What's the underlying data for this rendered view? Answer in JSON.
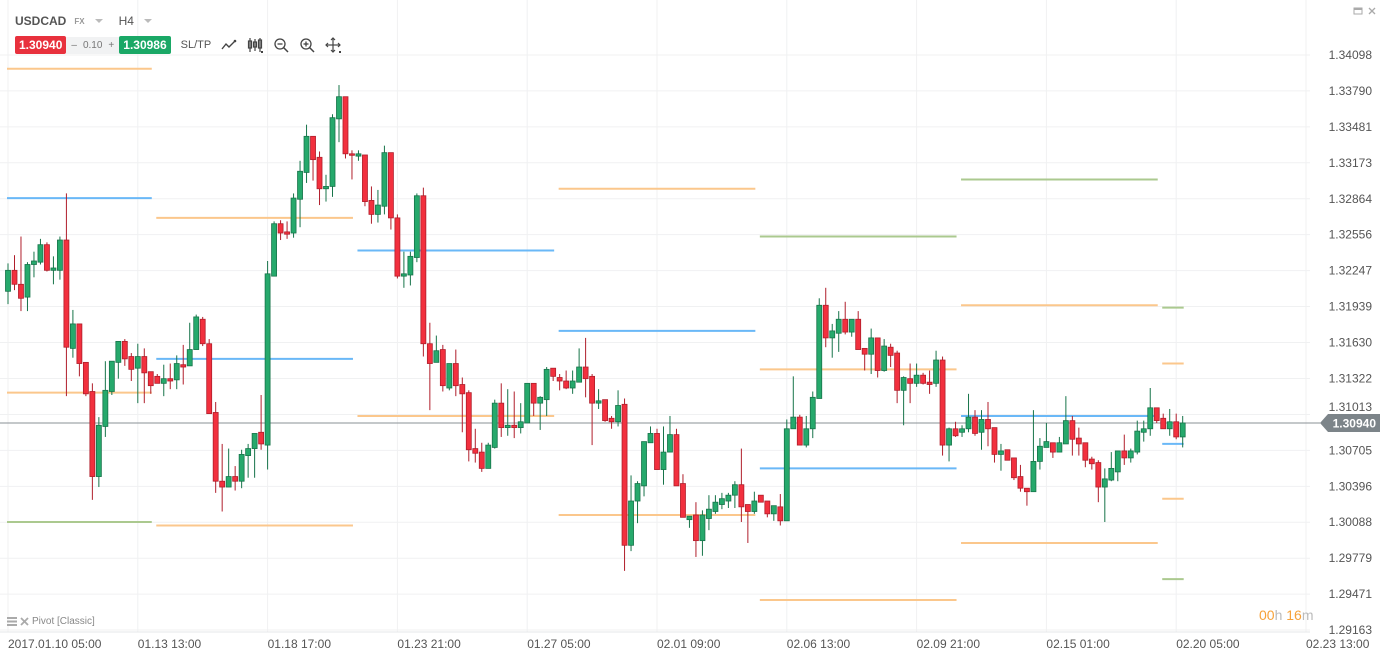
{
  "header": {
    "symbol": "USDCAD",
    "market": "FX",
    "timeframe": "H4",
    "bid": "1.30940",
    "spread_minus": "–",
    "spread": "0.10",
    "spread_plus": "+",
    "ask": "1.30986",
    "sltp_label": "SL/TP",
    "tools": [
      "line-chart-icon",
      "candlestick-type-icon",
      "zoom-out-icon",
      "zoom-in-icon",
      "crosshair-move-icon"
    ],
    "window_controls": [
      "minimize-icon",
      "close-icon"
    ]
  },
  "indicator": {
    "label": "Pivot [Classic]"
  },
  "countdown": {
    "hours": "00",
    "h": "h",
    "minutes": "16",
    "m": "m"
  },
  "colors": {
    "up": "#26a96c",
    "down": "#f2303e",
    "pivot_orange": "#fbc78c",
    "pivot_blue": "#6ab8f7",
    "pivot_green": "#abc98f",
    "price_tag": "#7c8489"
  },
  "chart_data": {
    "type": "candlestick",
    "symbol": "USDCAD",
    "current_price": "1.30940",
    "ylim": [
      1.29163,
      1.34098
    ],
    "y_ticks": [
      "1.34098",
      "1.33790",
      "1.33481",
      "1.33173",
      "1.32864",
      "1.32556",
      "1.32247",
      "1.31939",
      "1.31630",
      "1.31322",
      "1.31013",
      "1.30705",
      "1.30396",
      "1.30088",
      "1.29779",
      "1.29471",
      "1.29163"
    ],
    "x_ticks": [
      "2017.01.10 05:00",
      "01.13 13:00",
      "01.18 17:00",
      "01.23 21:00",
      "01.27 05:00",
      "02.01 09:00",
      "02.06 13:00",
      "02.09 21:00",
      "02.15 01:00",
      "02.20 05:00",
      "02.23 13:00"
    ],
    "x_tick_every_n_bars": 20,
    "grid": true,
    "ohlc_fields": [
      "open",
      "high",
      "low",
      "close"
    ],
    "candles": [
      [
        1.3207,
        1.3231,
        1.3196,
        1.3225
      ],
      [
        1.3225,
        1.3238,
        1.3208,
        1.3213
      ],
      [
        1.3213,
        1.3254,
        1.319,
        1.3201
      ],
      [
        1.3202,
        1.3232,
        1.319,
        1.323
      ],
      [
        1.323,
        1.3241,
        1.3219,
        1.3233
      ],
      [
        1.3232,
        1.3252,
        1.323,
        1.3247
      ],
      [
        1.3247,
        1.3249,
        1.3224,
        1.3225
      ],
      [
        1.3225,
        1.3237,
        1.3213,
        1.3227
      ],
      [
        1.3225,
        1.3254,
        1.3217,
        1.3251
      ],
      [
        1.3251,
        1.3291,
        1.3117,
        1.3159
      ],
      [
        1.3158,
        1.3191,
        1.315,
        1.3179
      ],
      [
        1.3179,
        1.3179,
        1.3134,
        1.3145
      ],
      [
        1.3146,
        1.3146,
        1.3117,
        1.3119
      ],
      [
        1.3121,
        1.3128,
        1.3028,
        1.3048
      ],
      [
        1.3048,
        1.3099,
        1.3039,
        1.3092
      ],
      [
        1.3091,
        1.3147,
        1.3082,
        1.3122
      ],
      [
        1.3121,
        1.3147,
        1.3118,
        1.3147
      ],
      [
        1.3146,
        1.3164,
        1.3132,
        1.3164
      ],
      [
        1.3164,
        1.3166,
        1.3143,
        1.3149
      ],
      [
        1.3151,
        1.3154,
        1.313,
        1.314
      ],
      [
        1.3141,
        1.3162,
        1.3111,
        1.3151
      ],
      [
        1.3151,
        1.3158,
        1.3111,
        1.3137
      ],
      [
        1.3138,
        1.3138,
        1.3119,
        1.3126
      ],
      [
        1.3134,
        1.3136,
        1.3128,
        1.3128
      ],
      [
        1.3128,
        1.3144,
        1.3117,
        1.3132
      ],
      [
        1.3132,
        1.3145,
        1.3123,
        1.313
      ],
      [
        1.3131,
        1.3152,
        1.3123,
        1.3145
      ],
      [
        1.3144,
        1.3161,
        1.3127,
        1.3142
      ],
      [
        1.3143,
        1.318,
        1.3143,
        1.3157
      ],
      [
        1.3157,
        1.3187,
        1.3157,
        1.3185
      ],
      [
        1.3183,
        1.3185,
        1.316,
        1.3162
      ],
      [
        1.3162,
        1.3166,
        1.3102,
        1.3102
      ],
      [
        1.3103,
        1.3112,
        1.3034,
        1.3044
      ],
      [
        1.3044,
        1.3076,
        1.3018,
        1.3039
      ],
      [
        1.3039,
        1.3072,
        1.3039,
        1.3048
      ],
      [
        1.3048,
        1.3057,
        1.3036,
        1.3044
      ],
      [
        1.3044,
        1.3071,
        1.3038,
        1.3067
      ],
      [
        1.3066,
        1.3076,
        1.3047,
        1.3072
      ],
      [
        1.3072,
        1.3085,
        1.3047,
        1.3085
      ],
      [
        1.3086,
        1.3118,
        1.3071,
        1.3076
      ],
      [
        1.3075,
        1.3233,
        1.3054,
        1.3222
      ],
      [
        1.322,
        1.3267,
        1.322,
        1.3265
      ],
      [
        1.3265,
        1.3268,
        1.3251,
        1.3257
      ],
      [
        1.3258,
        1.3267,
        1.3252,
        1.3256
      ],
      [
        1.3257,
        1.3291,
        1.3253,
        1.3287
      ],
      [
        1.3286,
        1.3319,
        1.3262,
        1.331
      ],
      [
        1.3309,
        1.335,
        1.33,
        1.334
      ],
      [
        1.334,
        1.334,
        1.3302,
        1.332
      ],
      [
        1.3322,
        1.3327,
        1.3281,
        1.3295
      ],
      [
        1.3295,
        1.3307,
        1.3284,
        1.3297
      ],
      [
        1.3297,
        1.3359,
        1.3288,
        1.3356
      ],
      [
        1.3355,
        1.3384,
        1.3335,
        1.3374
      ],
      [
        1.3374,
        1.3374,
        1.3321,
        1.3325
      ],
      [
        1.3325,
        1.3328,
        1.3303,
        1.3324
      ],
      [
        1.3323,
        1.3328,
        1.3319,
        1.3325
      ],
      [
        1.3324,
        1.3324,
        1.328,
        1.3284
      ],
      [
        1.3285,
        1.3297,
        1.3265,
        1.3273
      ],
      [
        1.3273,
        1.3294,
        1.3266,
        1.3281
      ],
      [
        1.328,
        1.3332,
        1.3273,
        1.3326
      ],
      [
        1.3326,
        1.3326,
        1.326,
        1.327
      ],
      [
        1.327,
        1.3273,
        1.3218,
        1.322
      ],
      [
        1.322,
        1.3241,
        1.321,
        1.3222
      ],
      [
        1.3221,
        1.3241,
        1.3212,
        1.3237
      ],
      [
        1.3236,
        1.3291,
        1.3232,
        1.3289
      ],
      [
        1.3289,
        1.3296,
        1.3151,
        1.3162
      ],
      [
        1.3162,
        1.318,
        1.3105,
        1.3145
      ],
      [
        1.3146,
        1.3169,
        1.3146,
        1.3156
      ],
      [
        1.3157,
        1.3161,
        1.3121,
        1.3126
      ],
      [
        1.3124,
        1.3145,
        1.3122,
        1.3145
      ],
      [
        1.3145,
        1.3157,
        1.3117,
        1.3126
      ],
      [
        1.3127,
        1.3133,
        1.3086,
        1.3119
      ],
      [
        1.312,
        1.3122,
        1.3061,
        1.3071
      ],
      [
        1.3072,
        1.3089,
        1.306,
        1.3068
      ],
      [
        1.3069,
        1.3077,
        1.3052,
        1.3055
      ],
      [
        1.3055,
        1.3077,
        1.3055,
        1.3075
      ],
      [
        1.3073,
        1.3114,
        1.3072,
        1.3111
      ],
      [
        1.3111,
        1.3128,
        1.3082,
        1.309
      ],
      [
        1.309,
        1.3123,
        1.3083,
        1.3092
      ],
      [
        1.3092,
        1.3121,
        1.3081,
        1.309
      ],
      [
        1.309,
        1.3111,
        1.3085,
        1.3095
      ],
      [
        1.3094,
        1.3128,
        1.3094,
        1.3128
      ],
      [
        1.3128,
        1.3128,
        1.31,
        1.3111
      ],
      [
        1.3111,
        1.3117,
        1.3088,
        1.3116
      ],
      [
        1.3114,
        1.3142,
        1.31,
        1.314
      ],
      [
        1.3141,
        1.3141,
        1.313,
        1.3134
      ],
      [
        1.3133,
        1.3136,
        1.3122,
        1.313
      ],
      [
        1.313,
        1.3139,
        1.3123,
        1.3124
      ],
      [
        1.3124,
        1.3139,
        1.3119,
        1.313
      ],
      [
        1.3129,
        1.3158,
        1.3129,
        1.3142
      ],
      [
        1.3142,
        1.3167,
        1.3116,
        1.3132
      ],
      [
        1.3134,
        1.3136,
        1.3075,
        1.3111
      ],
      [
        1.3111,
        1.3123,
        1.3106,
        1.3113
      ],
      [
        1.3114,
        1.3114,
        1.3095,
        1.3096
      ],
      [
        1.3098,
        1.31,
        1.3089,
        1.3095
      ],
      [
        1.3095,
        1.3122,
        1.3091,
        1.3109
      ],
      [
        1.311,
        1.3115,
        1.2967,
        1.2989
      ],
      [
        1.2989,
        1.3049,
        1.2984,
        1.3027
      ],
      [
        1.3027,
        1.3044,
        1.3008,
        1.3042
      ],
      [
        1.304,
        1.3078,
        1.3031,
        1.3078
      ],
      [
        1.3077,
        1.3091,
        1.3077,
        1.3085
      ],
      [
        1.3085,
        1.3089,
        1.3054,
        1.3054
      ],
      [
        1.3054,
        1.3091,
        1.3041,
        1.3069
      ],
      [
        1.3069,
        1.31,
        1.3069,
        1.3084
      ],
      [
        1.3084,
        1.3089,
        1.304,
        1.304
      ],
      [
        1.3042,
        1.305,
        1.3013,
        1.3013
      ],
      [
        1.3011,
        1.3014,
        1.3004,
        1.3014
      ],
      [
        1.3015,
        1.3026,
        1.2979,
        1.2993
      ],
      [
        1.2993,
        1.3019,
        1.298,
        1.3015
      ],
      [
        1.3012,
        1.3032,
        1.3002,
        1.302
      ],
      [
        1.3018,
        1.3032,
        1.3016,
        1.3026
      ],
      [
        1.3024,
        1.3034,
        1.302,
        1.3029
      ],
      [
        1.3027,
        1.3034,
        1.3021,
        1.3032
      ],
      [
        1.3032,
        1.3044,
        1.3021,
        1.3041
      ],
      [
        1.3041,
        1.3072,
        1.3009,
        1.3022
      ],
      [
        1.3024,
        1.3024,
        1.2991,
        1.3018
      ],
      [
        1.3018,
        1.3035,
        1.3016,
        1.3027
      ],
      [
        1.3032,
        1.3032,
        1.3026,
        1.3026
      ],
      [
        1.3027,
        1.3027,
        1.3013,
        1.3016
      ],
      [
        1.3016,
        1.3023,
        1.301,
        1.3023
      ],
      [
        1.3022,
        1.3033,
        1.3006,
        1.301
      ],
      [
        1.301,
        1.3097,
        1.301,
        1.3089
      ],
      [
        1.3089,
        1.3134,
        1.3089,
        1.3099
      ],
      [
        1.3099,
        1.3101,
        1.3075,
        1.3075
      ],
      [
        1.3075,
        1.31,
        1.3073,
        1.3089
      ],
      [
        1.3089,
        1.3121,
        1.3081,
        1.3116
      ],
      [
        1.3115,
        1.3201,
        1.3115,
        1.3195
      ],
      [
        1.3195,
        1.321,
        1.3159,
        1.3167
      ],
      [
        1.3167,
        1.3179,
        1.315,
        1.3173
      ],
      [
        1.3171,
        1.319,
        1.3155,
        1.3183
      ],
      [
        1.3183,
        1.3198,
        1.317,
        1.3172
      ],
      [
        1.3172,
        1.3183,
        1.3168,
        1.3183
      ],
      [
        1.3183,
        1.319,
        1.3157,
        1.3157
      ],
      [
        1.3158,
        1.3158,
        1.3139,
        1.3153
      ],
      [
        1.3153,
        1.3175,
        1.3136,
        1.3167
      ],
      [
        1.3167,
        1.3167,
        1.3133,
        1.3139
      ],
      [
        1.3139,
        1.3166,
        1.3138,
        1.316
      ],
      [
        1.3159,
        1.3162,
        1.3142,
        1.3152
      ],
      [
        1.3154,
        1.3156,
        1.3111,
        1.3122
      ],
      [
        1.3122,
        1.3134,
        1.3092,
        1.3133
      ],
      [
        1.3132,
        1.3145,
        1.3111,
        1.3128
      ],
      [
        1.3128,
        1.3145,
        1.3125,
        1.3135
      ],
      [
        1.3135,
        1.3137,
        1.3127,
        1.3128
      ],
      [
        1.3129,
        1.3139,
        1.3119,
        1.3127
      ],
      [
        1.3128,
        1.3156,
        1.3125,
        1.3148
      ],
      [
        1.3148,
        1.3151,
        1.3066,
        1.3075
      ],
      [
        1.3075,
        1.309,
        1.3061,
        1.3089
      ],
      [
        1.3089,
        1.3095,
        1.3082,
        1.3083
      ],
      [
        1.3086,
        1.3092,
        1.3082,
        1.3089
      ],
      [
        1.3089,
        1.3119,
        1.3086,
        1.3099
      ],
      [
        1.3099,
        1.3105,
        1.3083,
        1.3085
      ],
      [
        1.3086,
        1.3105,
        1.3071,
        1.3097
      ],
      [
        1.3097,
        1.3112,
        1.3074,
        1.3089
      ],
      [
        1.309,
        1.309,
        1.306,
        1.3067
      ],
      [
        1.3067,
        1.3076,
        1.3053,
        1.307
      ],
      [
        1.3071,
        1.3071,
        1.3062,
        1.3062
      ],
      [
        1.3064,
        1.3064,
        1.3045,
        1.3047
      ],
      [
        1.3048,
        1.3058,
        1.3035,
        1.3038
      ],
      [
        1.3038,
        1.3038,
        1.3023,
        1.3035
      ],
      [
        1.3035,
        1.3105,
        1.3035,
        1.3061
      ],
      [
        1.3061,
        1.3081,
        1.3054,
        1.3074
      ],
      [
        1.3073,
        1.3094,
        1.3073,
        1.3078
      ],
      [
        1.3077,
        1.3077,
        1.3064,
        1.3069
      ],
      [
        1.3069,
        1.3082,
        1.3069,
        1.3077
      ],
      [
        1.3076,
        1.3117,
        1.3076,
        1.3096
      ],
      [
        1.3096,
        1.31,
        1.3066,
        1.308
      ],
      [
        1.3081,
        1.309,
        1.3066,
        1.3076
      ],
      [
        1.3077,
        1.3077,
        1.3056,
        1.3062
      ],
      [
        1.3063,
        1.3065,
        1.3054,
        1.3059
      ],
      [
        1.306,
        1.3062,
        1.3026,
        1.3039
      ],
      [
        1.3039,
        1.3055,
        1.3009,
        1.3046
      ],
      [
        1.3045,
        1.3069,
        1.3044,
        1.3055
      ],
      [
        1.3052,
        1.307,
        1.3044,
        1.307
      ],
      [
        1.307,
        1.3084,
        1.3058,
        1.3064
      ],
      [
        1.3064,
        1.3072,
        1.306,
        1.307
      ],
      [
        1.3069,
        1.3096,
        1.3067,
        1.3087
      ],
      [
        1.3086,
        1.3096,
        1.3078,
        1.3089
      ],
      [
        1.3089,
        1.3124,
        1.3083,
        1.3107
      ],
      [
        1.3107,
        1.3107,
        1.3094,
        1.3096
      ],
      [
        1.3098,
        1.3102,
        1.3089,
        1.3089
      ],
      [
        1.3089,
        1.3106,
        1.3083,
        1.3095
      ],
      [
        1.3095,
        1.3102,
        1.308,
        1.3082
      ],
      [
        1.3082,
        1.31,
        1.3073,
        1.3094
      ]
    ],
    "pivot_levels": [
      {
        "bars": [
          0,
          22
        ],
        "levels": [
          {
            "color": "orange",
            "value": 1.3398
          },
          {
            "color": "blue",
            "value": 1.3287
          },
          {
            "color": "orange",
            "value": 1.312
          },
          {
            "color": "green",
            "value": 1.3009
          }
        ]
      },
      {
        "bars": [
          23,
          53
        ],
        "levels": [
          {
            "color": "orange",
            "value": 1.327
          },
          {
            "color": "blue",
            "value": 1.3149
          },
          {
            "color": "orange",
            "value": 1.3006
          }
        ]
      },
      {
        "bars": [
          54,
          84
        ],
        "levels": [
          {
            "color": "blue",
            "value": 1.3242
          },
          {
            "color": "orange",
            "value": 1.31
          }
        ]
      },
      {
        "bars": [
          85,
          115
        ],
        "levels": [
          {
            "color": "orange",
            "value": 1.3295
          },
          {
            "color": "blue",
            "value": 1.3173
          },
          {
            "color": "orange",
            "value": 1.3015
          }
        ]
      },
      {
        "bars": [
          116,
          146
        ],
        "levels": [
          {
            "color": "green",
            "value": 1.3254
          },
          {
            "color": "orange",
            "value": 1.314
          },
          {
            "color": "blue",
            "value": 1.3055
          },
          {
            "color": "orange",
            "value": 1.2942
          }
        ]
      },
      {
        "bars": [
          147,
          177
        ],
        "levels": [
          {
            "color": "green",
            "value": 1.3303
          },
          {
            "color": "orange",
            "value": 1.3195
          },
          {
            "color": "blue",
            "value": 1.31
          },
          {
            "color": "orange",
            "value": 1.2991
          }
        ]
      },
      {
        "bars": [
          178,
          181
        ],
        "levels": [
          {
            "color": "green",
            "value": 1.3193
          },
          {
            "color": "orange",
            "value": 1.3145
          },
          {
            "color": "blue",
            "value": 1.3076
          },
          {
            "color": "orange",
            "value": 1.3029
          },
          {
            "color": "green",
            "value": 1.296
          }
        ]
      }
    ]
  }
}
